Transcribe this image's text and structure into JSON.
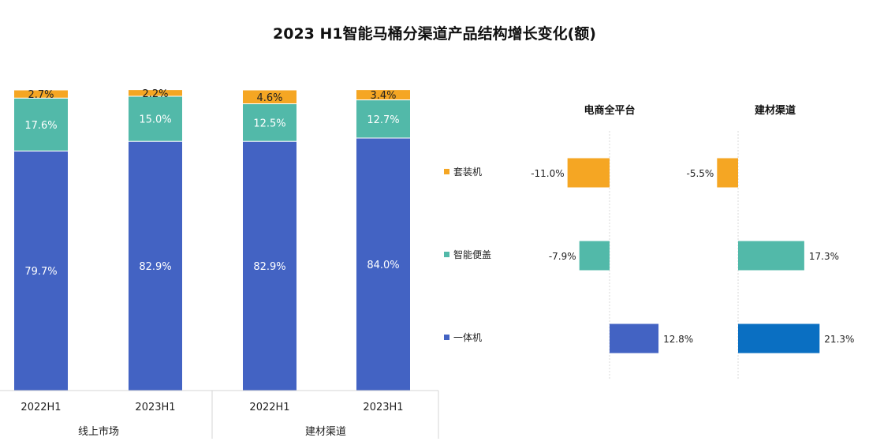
{
  "title": "2023 H1智能马桶分渠道产品结构增长变化(额)",
  "colors": {
    "yitiji": "#4363c3",
    "bianggai": "#52b9a9",
    "taozhuangji": "#f5a623",
    "yitiji_right": "#0a6fc2"
  },
  "chart_data": [
    {
      "type": "bar",
      "stacked": true,
      "categories": [
        "2022H1",
        "2023H1",
        "2022H1",
        "2023H1"
      ],
      "groups": [
        {
          "label": "线上市场",
          "categories": [
            "2022H1",
            "2023H1"
          ]
        },
        {
          "label": "建材渠道",
          "categories": [
            "2022H1",
            "2023H1"
          ]
        }
      ],
      "series": [
        {
          "name": "一体机",
          "values": [
            79.7,
            82.9,
            82.9,
            84.0
          ],
          "labels": [
            "79.7%",
            "82.9%",
            "82.9%",
            "84.0%"
          ]
        },
        {
          "name": "智能便盖",
          "values": [
            17.6,
            15.0,
            12.5,
            12.7
          ],
          "labels": [
            "17.6%",
            "15.0%",
            "12.5%",
            "12.7%"
          ]
        },
        {
          "name": "套装机",
          "values": [
            2.7,
            2.2,
            4.6,
            3.4
          ],
          "labels": [
            "2.7%",
            "2.2%",
            "4.6%",
            "3.4%"
          ]
        }
      ],
      "ylim": [
        0,
        100
      ]
    },
    {
      "type": "bar",
      "orientation": "horizontal",
      "panels": [
        {
          "title": "电商全平台",
          "categories": [
            "套装机",
            "智能便盖",
            "一体机"
          ],
          "values": [
            -11.0,
            -7.9,
            12.8
          ],
          "labels": [
            "-11.0%",
            "-7.9%",
            "12.8%"
          ]
        },
        {
          "title": "建材渠道",
          "categories": [
            "套装机",
            "智能便盖",
            "一体机"
          ],
          "values": [
            -5.5,
            17.3,
            21.3
          ],
          "labels": [
            "-5.5%",
            "17.3%",
            "21.3%"
          ]
        }
      ],
      "legend": [
        "套装机",
        "智能便盖",
        "一体机"
      ],
      "legend_placement": "left"
    }
  ]
}
